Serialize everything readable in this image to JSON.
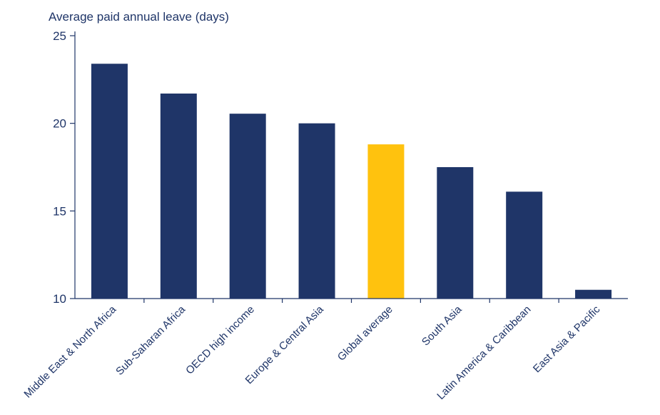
{
  "chart_data": {
    "type": "bar",
    "ylabel": "Average paid annual leave (days)",
    "categories": [
      "Middle East & North Africa",
      "Sub-Saharan Africa",
      "OECD high income",
      "Europe & Central Asia",
      "Global average",
      "South Asia",
      "Latin America & Caribbean",
      "East Asia & Pacific"
    ],
    "values": [
      23.4,
      21.7,
      20.55,
      20.0,
      18.8,
      17.5,
      16.1,
      10.5
    ],
    "highlight_index": 4,
    "ylim": [
      10,
      25
    ],
    "yticks": [
      10,
      15,
      20,
      25
    ],
    "grid": false,
    "colors": {
      "bar": "#1f3568",
      "highlight": "#ffc20e",
      "axis": "#1f3568",
      "text": "#1f3568"
    }
  }
}
